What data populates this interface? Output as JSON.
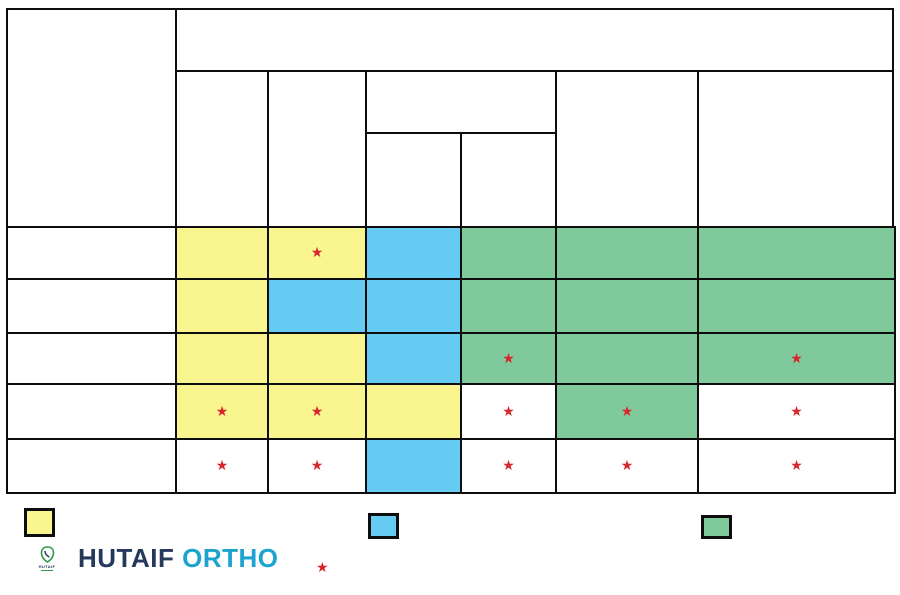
{
  "colors": {
    "yellow": "#F9F68F",
    "blue": "#66CBF2",
    "green": "#80C99B",
    "white": "#FFFFFF",
    "star": "#D8262E",
    "grid_border": "#0D0D0D",
    "brand_navy": "#24395C",
    "brand_cyan": "#1CA4CF",
    "logo_green": "#2F9A47"
  },
  "icons": {
    "star": "★"
  },
  "chart_data": {
    "type": "table",
    "title": "",
    "header": {
      "top_banner_label": "",
      "column_labels": [
        "",
        "",
        "",
        "",
        "",
        ""
      ],
      "row_labels": [
        "",
        "",
        "",
        "",
        ""
      ]
    },
    "rows": [
      [
        {
          "color": "yellow",
          "star": false
        },
        {
          "color": "yellow",
          "star": true
        },
        {
          "color": "blue",
          "star": false
        },
        {
          "color": "green",
          "star": false
        },
        {
          "color": "green",
          "star": false
        },
        {
          "color": "green",
          "star": false
        }
      ],
      [
        {
          "color": "yellow",
          "star": false
        },
        {
          "color": "blue",
          "star": false
        },
        {
          "color": "blue",
          "star": false
        },
        {
          "color": "green",
          "star": false
        },
        {
          "color": "green",
          "star": false
        },
        {
          "color": "green",
          "star": false
        }
      ],
      [
        {
          "color": "yellow",
          "star": false
        },
        {
          "color": "yellow",
          "star": false
        },
        {
          "color": "blue",
          "star": false
        },
        {
          "color": "green",
          "star": true
        },
        {
          "color": "green",
          "star": false
        },
        {
          "color": "green",
          "star": true
        }
      ],
      [
        {
          "color": "yellow",
          "star": true
        },
        {
          "color": "yellow",
          "star": true
        },
        {
          "color": "yellow",
          "star": false
        },
        {
          "color": "white",
          "star": true
        },
        {
          "color": "green",
          "star": true
        },
        {
          "color": "white",
          "star": true
        }
      ],
      [
        {
          "color": "white",
          "star": true
        },
        {
          "color": "white",
          "star": true
        },
        {
          "color": "blue",
          "star": false
        },
        {
          "color": "white",
          "star": true
        },
        {
          "color": "white",
          "star": true
        },
        {
          "color": "white",
          "star": true
        }
      ]
    ],
    "legend": {
      "swatches": [
        {
          "name": "yellow-legend",
          "color": "yellow",
          "label": ""
        },
        {
          "name": "blue-legend",
          "color": "blue",
          "label": ""
        },
        {
          "name": "green-legend",
          "color": "green",
          "label": ""
        }
      ],
      "star_marker_label": ""
    }
  },
  "brand": {
    "name_primary": "HUTAIF",
    "name_secondary": "ORTHO",
    "logo_caption": "HUTAIF"
  }
}
